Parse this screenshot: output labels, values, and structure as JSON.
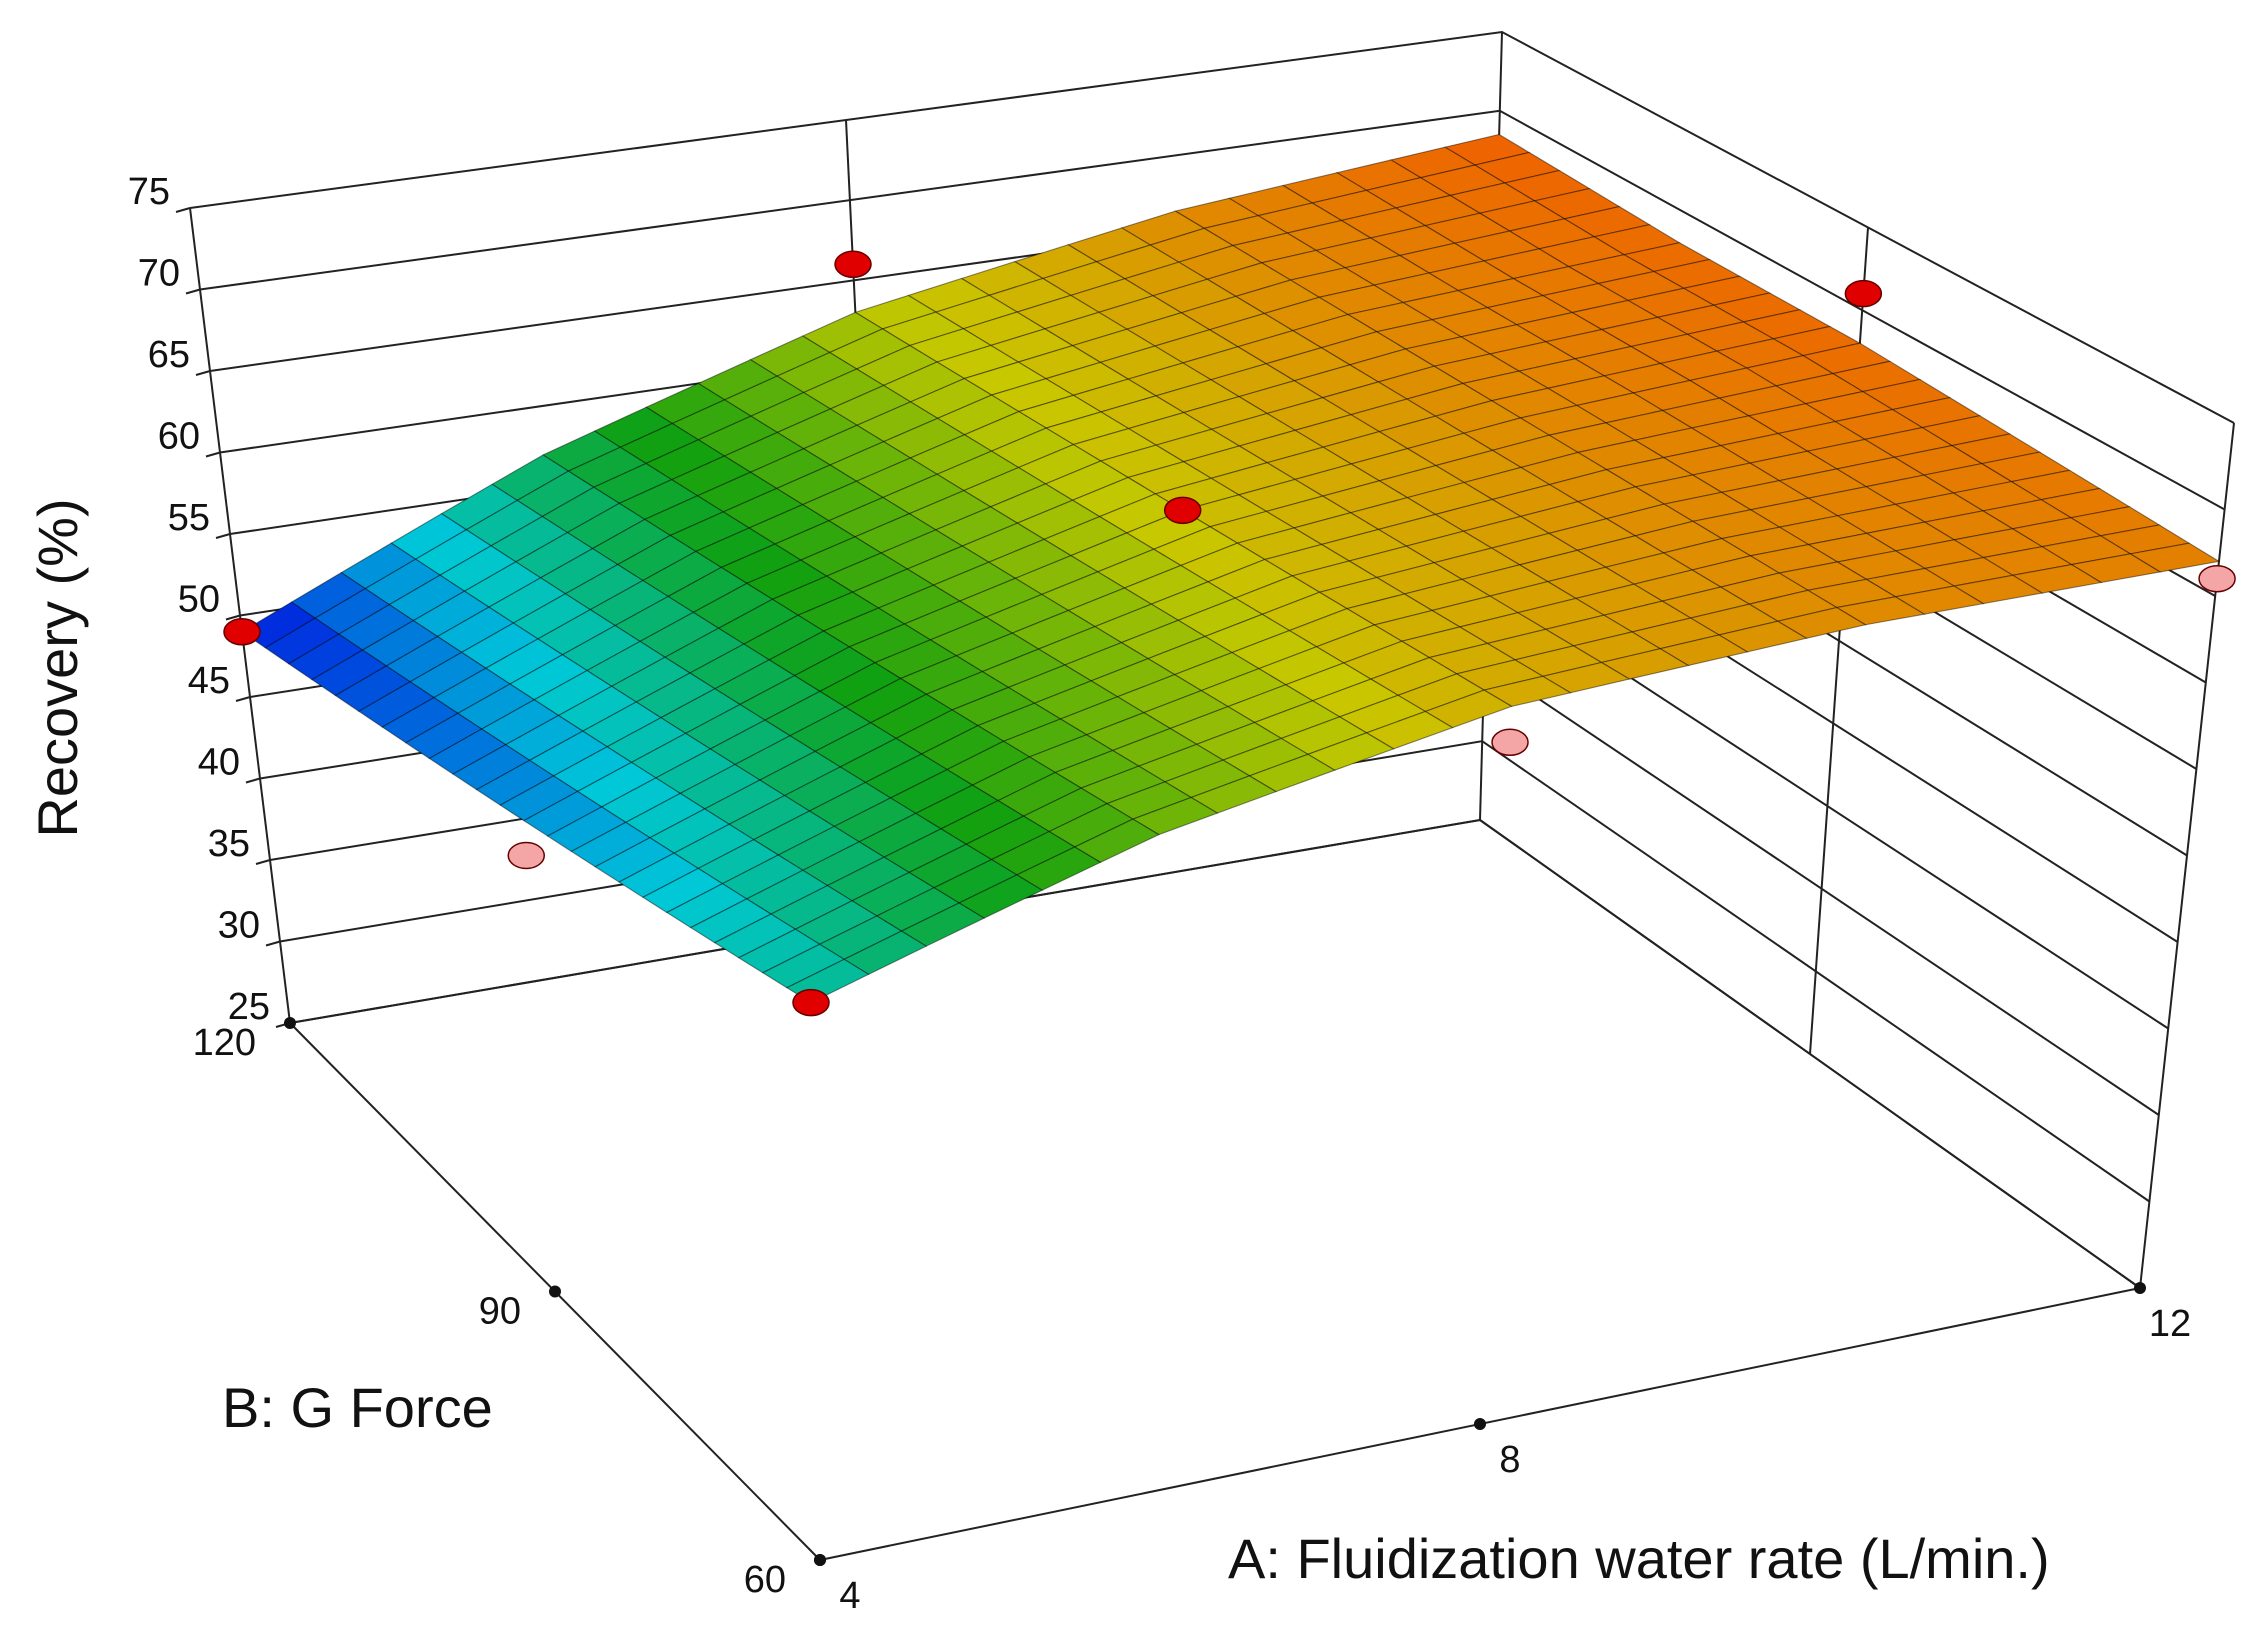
{
  "chart_data": {
    "type": "surface3d",
    "x_label": "A: Fluidization water rate (L/min.)",
    "y_label": "B: G Force",
    "z_label": "Recovery (%)",
    "xlim": [
      4,
      12
    ],
    "ylim": [
      60,
      120
    ],
    "zlim": [
      25,
      75
    ],
    "xticks": [
      4,
      8,
      12
    ],
    "yticks": [
      60,
      90,
      120
    ],
    "zticks": [
      25,
      30,
      35,
      40,
      45,
      50,
      55,
      60,
      65,
      70,
      75
    ],
    "surface": {
      "x": [
        4,
        6,
        8,
        10,
        12
      ],
      "y": [
        60,
        75,
        90,
        105,
        120
      ],
      "z": [
        [
          55,
          61,
          65,
          66.5,
          67
        ],
        [
          53.5,
          60,
          64.5,
          66.5,
          67.5
        ],
        [
          52,
          59,
          64,
          66.5,
          68
        ],
        [
          50.5,
          58,
          63.5,
          66.5,
          68
        ],
        [
          49,
          57,
          63,
          66.5,
          68.5
        ]
      ],
      "colormap": [
        "#0010e0",
        "#00c8d8",
        "#10a010",
        "#c8c800",
        "#f06000"
      ]
    },
    "design_points": {
      "x": [
        4,
        4,
        4,
        8,
        8,
        8,
        8,
        8,
        12,
        12
      ],
      "y": [
        60,
        120,
        90,
        120,
        90,
        90,
        90,
        60,
        90,
        60
      ],
      "values": [
        55,
        49,
        50,
        66,
        62,
        63,
        64,
        63,
        71,
        66
      ],
      "above_color": "#e00000",
      "below_color": "#f4a6a6"
    }
  }
}
